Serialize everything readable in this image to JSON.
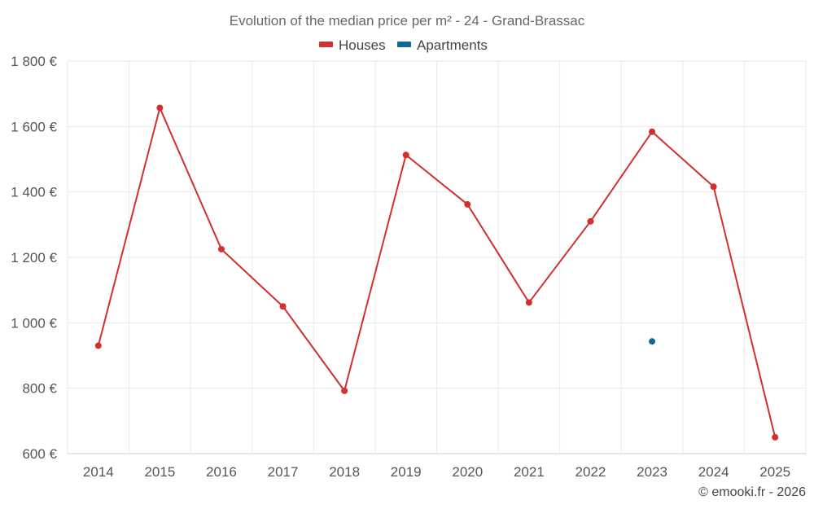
{
  "chart_data": {
    "type": "line",
    "title": "Evolution of the median price per m² - 24 - Grand-Brassac",
    "categories": [
      "2014",
      "2015",
      "2016",
      "2017",
      "2018",
      "2019",
      "2020",
      "2021",
      "2022",
      "2023",
      "2024",
      "2025"
    ],
    "series": [
      {
        "name": "Houses",
        "color": "#d32f2f",
        "values": [
          930,
          1657,
          1225,
          1050,
          792,
          1513,
          1362,
          1062,
          1310,
          1584,
          1416,
          650
        ]
      },
      {
        "name": "Apartments",
        "color": "#0d6a9a",
        "values": [
          null,
          null,
          null,
          null,
          null,
          null,
          null,
          null,
          null,
          943,
          null,
          null
        ]
      }
    ],
    "ylim": [
      600,
      1800
    ],
    "yticks": [
      600,
      800,
      1000,
      1200,
      1400,
      1600,
      1800
    ],
    "ytick_labels": [
      "600 €",
      "800 €",
      "1 000 €",
      "1 200 €",
      "1 400 €",
      "1 600 €",
      "1 800 €"
    ],
    "xlabel": "",
    "ylabel": "",
    "grid": true,
    "legend_position": "top-center"
  },
  "credit": "© emooki.fr - 2026"
}
